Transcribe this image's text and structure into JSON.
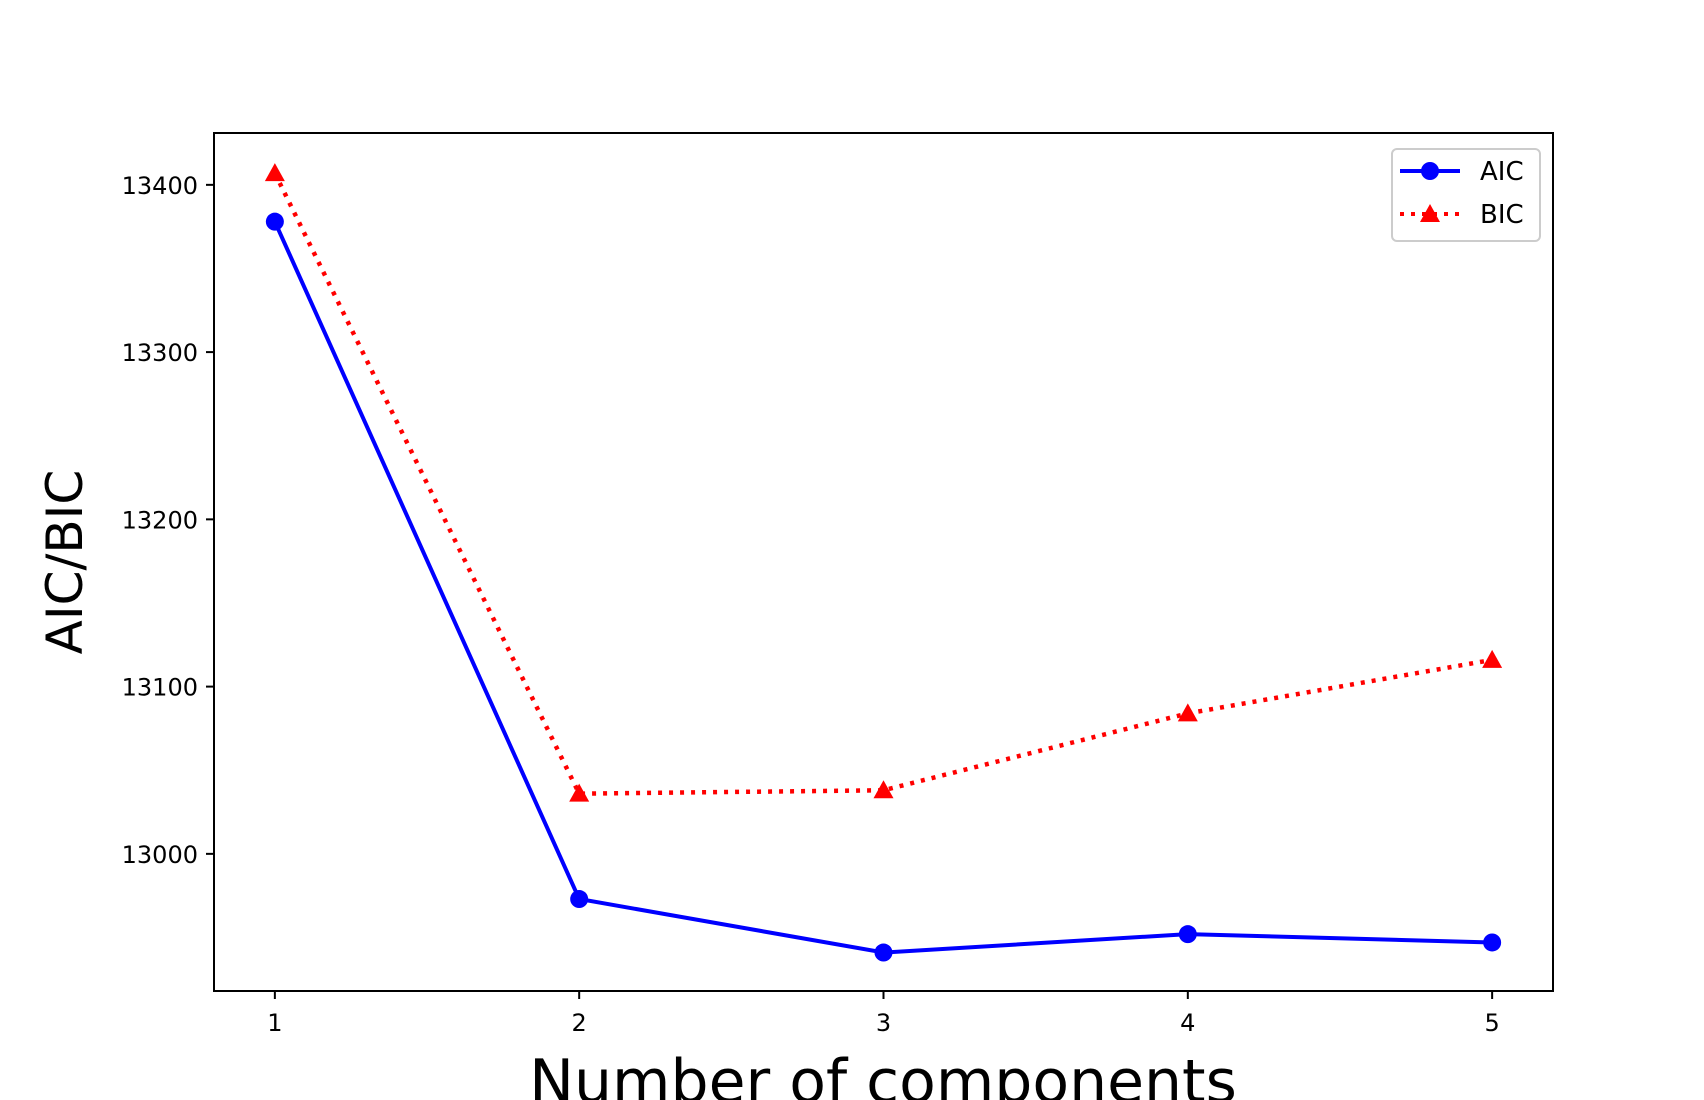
{
  "chart_data": {
    "type": "line",
    "title": "",
    "xlabel": "Number of components",
    "ylabel": "AIC/BIC",
    "x": [
      1,
      2,
      3,
      4,
      5
    ],
    "xticks": [
      "1",
      "2",
      "3",
      "4",
      "5"
    ],
    "yticks": [
      "13000",
      "13100",
      "13200",
      "13300",
      "13400"
    ],
    "xlim": [
      0.8,
      5.2
    ],
    "ylim": [
      12918,
      13431
    ],
    "grid": false,
    "legend_position": "top-right",
    "series": [
      {
        "name": "AIC",
        "values": [
          13378,
          12973,
          12941,
          12952,
          12947
        ],
        "color": "#0000ff",
        "linestyle": "solid",
        "marker": "circle"
      },
      {
        "name": "BIC",
        "values": [
          13407,
          13036,
          13038,
          13084,
          13116
        ],
        "color": "#ff0000",
        "linestyle": "dotted",
        "marker": "triangle"
      }
    ]
  }
}
